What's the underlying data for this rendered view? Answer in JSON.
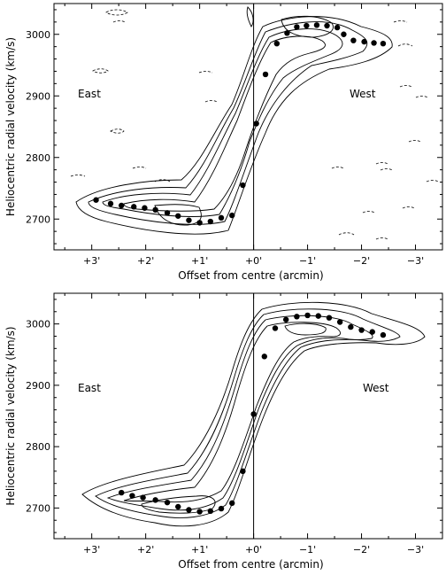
{
  "chart_data": [
    {
      "type": "scatter",
      "panel": "observed",
      "xlabel": "Offset from centre (arcmin)",
      "ylabel": "Heliocentric radial velocity (km/s)",
      "xlim": [
        3.7,
        -3.5
      ],
      "ylim": [
        2650,
        3050
      ],
      "x_ticks": [
        3,
        2,
        1,
        0,
        -1,
        -2,
        -3
      ],
      "x_tick_labels": [
        "+3'",
        "+2'",
        "+1'",
        "+0'",
        "−1'",
        "−2'",
        "−3'"
      ],
      "y_ticks": [
        2700,
        2800,
        2900,
        3000
      ],
      "y_tick_labels": [
        "2700",
        "2800",
        "2900",
        "3000"
      ],
      "annotations": [
        "East",
        "West"
      ],
      "points": [
        {
          "x": 2.92,
          "y": 2731
        },
        {
          "x": 2.65,
          "y": 2725
        },
        {
          "x": 2.45,
          "y": 2722
        },
        {
          "x": 2.22,
          "y": 2720
        },
        {
          "x": 2.02,
          "y": 2718
        },
        {
          "x": 1.82,
          "y": 2715
        },
        {
          "x": 1.6,
          "y": 2710
        },
        {
          "x": 1.4,
          "y": 2705
        },
        {
          "x": 1.2,
          "y": 2698
        },
        {
          "x": 1.0,
          "y": 2694
        },
        {
          "x": 0.8,
          "y": 2696
        },
        {
          "x": 0.6,
          "y": 2702
        },
        {
          "x": 0.4,
          "y": 2706
        },
        {
          "x": 0.2,
          "y": 2755
        },
        {
          "x": -0.05,
          "y": 2855
        },
        {
          "x": -0.22,
          "y": 2935
        },
        {
          "x": -0.43,
          "y": 2985
        },
        {
          "x": -0.62,
          "y": 3002
        },
        {
          "x": -0.8,
          "y": 3012
        },
        {
          "x": -0.98,
          "y": 3014
        },
        {
          "x": -1.17,
          "y": 3015
        },
        {
          "x": -1.36,
          "y": 3014
        },
        {
          "x": -1.55,
          "y": 3011
        },
        {
          "x": -1.67,
          "y": 3000
        },
        {
          "x": -1.85,
          "y": 2990
        },
        {
          "x": -2.05,
          "y": 2988
        },
        {
          "x": -2.23,
          "y": 2986
        },
        {
          "x": -2.4,
          "y": 2985
        }
      ]
    },
    {
      "type": "scatter",
      "panel": "model",
      "xlabel": "Offset from centre (arcmin)",
      "ylabel": "Heliocentric radial velocity (km/s)",
      "xlim": [
        3.7,
        -3.5
      ],
      "ylim": [
        2650,
        3050
      ],
      "x_ticks": [
        3,
        2,
        1,
        0,
        -1,
        -2,
        -3
      ],
      "x_tick_labels": [
        "+3'",
        "+2'",
        "+1'",
        "+0'",
        "−1'",
        "−2'",
        "−3'"
      ],
      "y_ticks": [
        2700,
        2800,
        2900,
        3000
      ],
      "y_tick_labels": [
        "2700",
        "2800",
        "2900",
        "3000"
      ],
      "annotations": [
        "East",
        "West"
      ],
      "points": [
        {
          "x": 2.45,
          "y": 2725
        },
        {
          "x": 2.25,
          "y": 2720
        },
        {
          "x": 2.05,
          "y": 2717
        },
        {
          "x": 1.82,
          "y": 2713
        },
        {
          "x": 1.6,
          "y": 2709
        },
        {
          "x": 1.4,
          "y": 2702
        },
        {
          "x": 1.2,
          "y": 2697
        },
        {
          "x": 1.0,
          "y": 2694
        },
        {
          "x": 0.8,
          "y": 2695
        },
        {
          "x": 0.6,
          "y": 2699
        },
        {
          "x": 0.4,
          "y": 2708
        },
        {
          "x": 0.2,
          "y": 2760
        },
        {
          "x": 0.0,
          "y": 2853
        },
        {
          "x": -0.2,
          "y": 2947
        },
        {
          "x": -0.4,
          "y": 2993
        },
        {
          "x": -0.6,
          "y": 3007
        },
        {
          "x": -0.8,
          "y": 3012
        },
        {
          "x": -1.0,
          "y": 3014
        },
        {
          "x": -1.2,
          "y": 3013
        },
        {
          "x": -1.4,
          "y": 3010
        },
        {
          "x": -1.6,
          "y": 3003
        },
        {
          "x": -1.8,
          "y": 2995
        },
        {
          "x": -2.0,
          "y": 2990
        },
        {
          "x": -2.2,
          "y": 2987
        },
        {
          "x": -2.4,
          "y": 2982
        }
      ]
    }
  ]
}
